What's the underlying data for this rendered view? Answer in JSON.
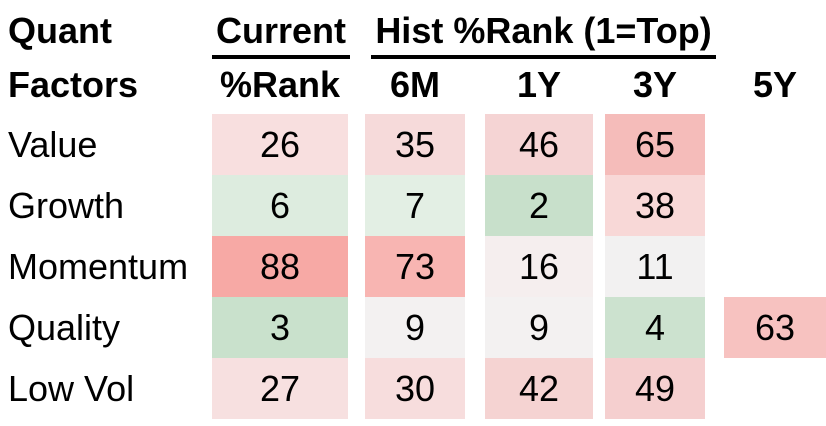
{
  "table": {
    "row_header_line1": "Quant",
    "row_header_line2": "Factors",
    "group_headers": {
      "current": "Current",
      "hist": "Hist %Rank (1=Top)"
    },
    "column_headers": [
      "%Rank",
      "6M",
      "1Y",
      "3Y",
      "5Y"
    ],
    "rows": [
      {
        "label": "Value",
        "cells": [
          {
            "value": "26",
            "bg": "#f8dfdf"
          },
          {
            "value": "35",
            "bg": "#f6dada"
          },
          {
            "value": "46",
            "bg": "#f5d4d4"
          },
          {
            "value": "65",
            "bg": "#f5bcba"
          },
          {
            "value": "",
            "bg": ""
          }
        ]
      },
      {
        "label": "Growth",
        "cells": [
          {
            "value": "6",
            "bg": "#ddecdf"
          },
          {
            "value": "7",
            "bg": "#e3efe4"
          },
          {
            "value": "2",
            "bg": "#c8e0cb"
          },
          {
            "value": "38",
            "bg": "#f8d8d7"
          },
          {
            "value": "",
            "bg": ""
          }
        ]
      },
      {
        "label": "Momentum",
        "cells": [
          {
            "value": "88",
            "bg": "#f7a9a5"
          },
          {
            "value": "73",
            "bg": "#f8b5b2"
          },
          {
            "value": "16",
            "bg": "#f5eeee"
          },
          {
            "value": "11",
            "bg": "#f2f1f1"
          },
          {
            "value": "",
            "bg": ""
          }
        ]
      },
      {
        "label": "Quality",
        "cells": [
          {
            "value": "3",
            "bg": "#c9e1cc"
          },
          {
            "value": "9",
            "bg": "#f3f1f1"
          },
          {
            "value": "9",
            "bg": "#f3f1f1"
          },
          {
            "value": "4",
            "bg": "#cce2cf"
          },
          {
            "value": "63",
            "bg": "#f7c2c0"
          }
        ]
      },
      {
        "label": "Low Vol",
        "cells": [
          {
            "value": "27",
            "bg": "#f7e0e0"
          },
          {
            "value": "30",
            "bg": "#f7dddd"
          },
          {
            "value": "42",
            "bg": "#f5d3d2"
          },
          {
            "value": "49",
            "bg": "#f5cfcf"
          },
          {
            "value": "",
            "bg": ""
          }
        ]
      }
    ]
  },
  "colors": {
    "rank_low_good_green": "#c8e0cb",
    "rank_high_bad_red": "#f7a9a5",
    "rank_neutral": "#f2f1f1",
    "text": "#000000",
    "background": "#ffffff"
  },
  "chart_data": {
    "type": "heatmap",
    "title": "Hist %Rank (1=Top)",
    "row_header": "Quant Factors",
    "rows": [
      "Value",
      "Growth",
      "Momentum",
      "Quality",
      "Low Vol"
    ],
    "columns": [
      "Current %Rank",
      "6M",
      "1Y",
      "3Y",
      "5Y"
    ],
    "values": [
      [
        26,
        35,
        46,
        65,
        null
      ],
      [
        6,
        7,
        2,
        38,
        null
      ],
      [
        88,
        73,
        16,
        11,
        null
      ],
      [
        3,
        9,
        9,
        4,
        63
      ],
      [
        27,
        30,
        42,
        49,
        null
      ]
    ],
    "value_range": [
      1,
      100
    ],
    "color_scale": "green = low percentile rank (best, 1=Top), white/gray = mid-low, red = high percentile rank (worst)",
    "legend_position": "none",
    "grid": false
  }
}
